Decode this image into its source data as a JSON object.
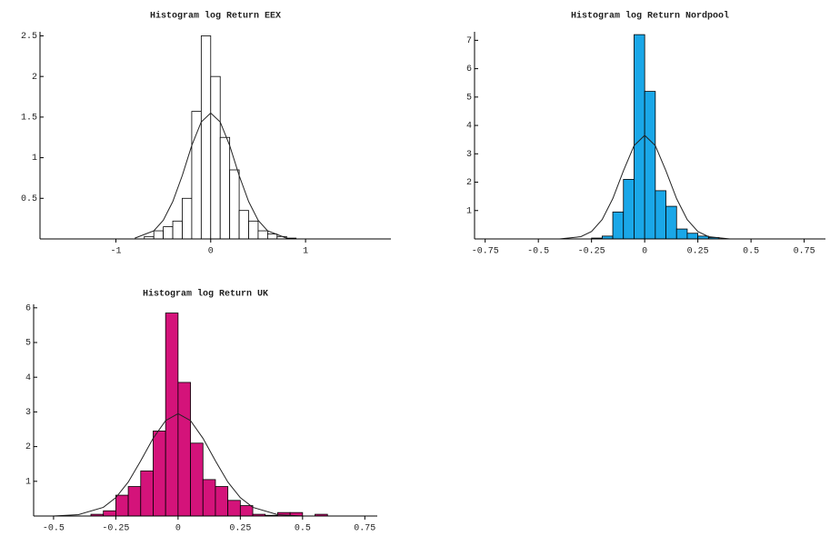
{
  "chart_data": [
    {
      "type": "histogram",
      "title": "Histogram log Return EEX",
      "bins": [
        -0.7,
        -0.6,
        -0.5,
        -0.4,
        -0.3,
        -0.2,
        -0.1,
        0,
        0.1,
        0.2,
        0.3,
        0.4,
        0.5,
        0.6,
        0.7,
        0.8,
        0.9
      ],
      "counts": [
        0.03,
        0.1,
        0.15,
        0.22,
        0.5,
        1.57,
        2.5,
        2.0,
        1.25,
        0.85,
        0.35,
        0.22,
        0.1,
        0.06,
        0.03,
        0.01
      ],
      "color": "#ffffff",
      "curve": {
        "x": [
          -0.8,
          -0.6,
          -0.5,
          -0.4,
          -0.3,
          -0.2,
          -0.1,
          0,
          0.1,
          0.2,
          0.3,
          0.4,
          0.5,
          0.6,
          0.8
        ],
        "values": [
          0.01,
          0.1,
          0.23,
          0.46,
          0.78,
          1.15,
          1.44,
          1.55,
          1.44,
          1.15,
          0.78,
          0.46,
          0.23,
          0.1,
          0.01
        ]
      },
      "xlim": [
        -1.8,
        1.9
      ],
      "ylim": [
        0,
        2.55
      ],
      "xticks": [
        -1,
        0,
        1
      ],
      "yticks": [
        0.5,
        1,
        1.5,
        2,
        2.5
      ]
    },
    {
      "type": "histogram",
      "title": "Histogram log Return Nordpool",
      "bins": [
        -0.25,
        -0.2,
        -0.15,
        -0.1,
        -0.05,
        0,
        0.05,
        0.1,
        0.15,
        0.2,
        0.25,
        0.3,
        0.35
      ],
      "counts": [
        0.03,
        0.1,
        0.95,
        2.1,
        7.2,
        5.2,
        1.7,
        1.15,
        0.35,
        0.2,
        0.1,
        0.05
      ],
      "color": "#1aa7e8",
      "curve": {
        "x": [
          -0.4,
          -0.3,
          -0.25,
          -0.2,
          -0.15,
          -0.1,
          -0.05,
          0,
          0.05,
          0.1,
          0.15,
          0.2,
          0.25,
          0.3,
          0.4
        ],
        "values": [
          0,
          0.08,
          0.26,
          0.68,
          1.42,
          2.4,
          3.29,
          3.65,
          3.29,
          2.4,
          1.42,
          0.68,
          0.26,
          0.08,
          0
        ]
      },
      "xlim": [
        -0.8,
        0.85
      ],
      "ylim": [
        0,
        7.3
      ],
      "xticks": [
        -0.75,
        -0.5,
        -0.25,
        0,
        0.25,
        0.5,
        0.75
      ],
      "yticks": [
        1,
        2,
        3,
        4,
        5,
        6,
        7
      ]
    },
    {
      "type": "histogram",
      "title": "Histogram log Return UK",
      "bins": [
        -0.35,
        -0.3,
        -0.25,
        -0.2,
        -0.15,
        -0.1,
        -0.05,
        0,
        0.05,
        0.1,
        0.15,
        0.2,
        0.25,
        0.3,
        0.35,
        0.4,
        0.45,
        0.5,
        0.55,
        0.6
      ],
      "counts": [
        0.05,
        0.15,
        0.6,
        0.85,
        1.3,
        2.45,
        5.85,
        3.85,
        2.1,
        1.05,
        0.85,
        0.45,
        0.3,
        0.05,
        0.02,
        0.1,
        0.1,
        0,
        0.05
      ],
      "color": "#d4137a",
      "curve": {
        "x": [
          -0.5,
          -0.4,
          -0.3,
          -0.25,
          -0.2,
          -0.15,
          -0.1,
          -0.05,
          0,
          0.05,
          0.1,
          0.15,
          0.2,
          0.25,
          0.3,
          0.4,
          0.5
        ],
        "values": [
          0,
          0.04,
          0.25,
          0.53,
          0.98,
          1.59,
          2.24,
          2.75,
          2.95,
          2.75,
          2.24,
          1.59,
          0.98,
          0.53,
          0.25,
          0.04,
          0
        ]
      },
      "xlim": [
        -0.58,
        0.8
      ],
      "ylim": [
        0,
        6.1
      ],
      "xticks": [
        -0.5,
        -0.25,
        0,
        0.25,
        0.5,
        0.75
      ],
      "yticks": [
        1,
        2,
        3,
        4,
        5,
        6
      ]
    }
  ]
}
